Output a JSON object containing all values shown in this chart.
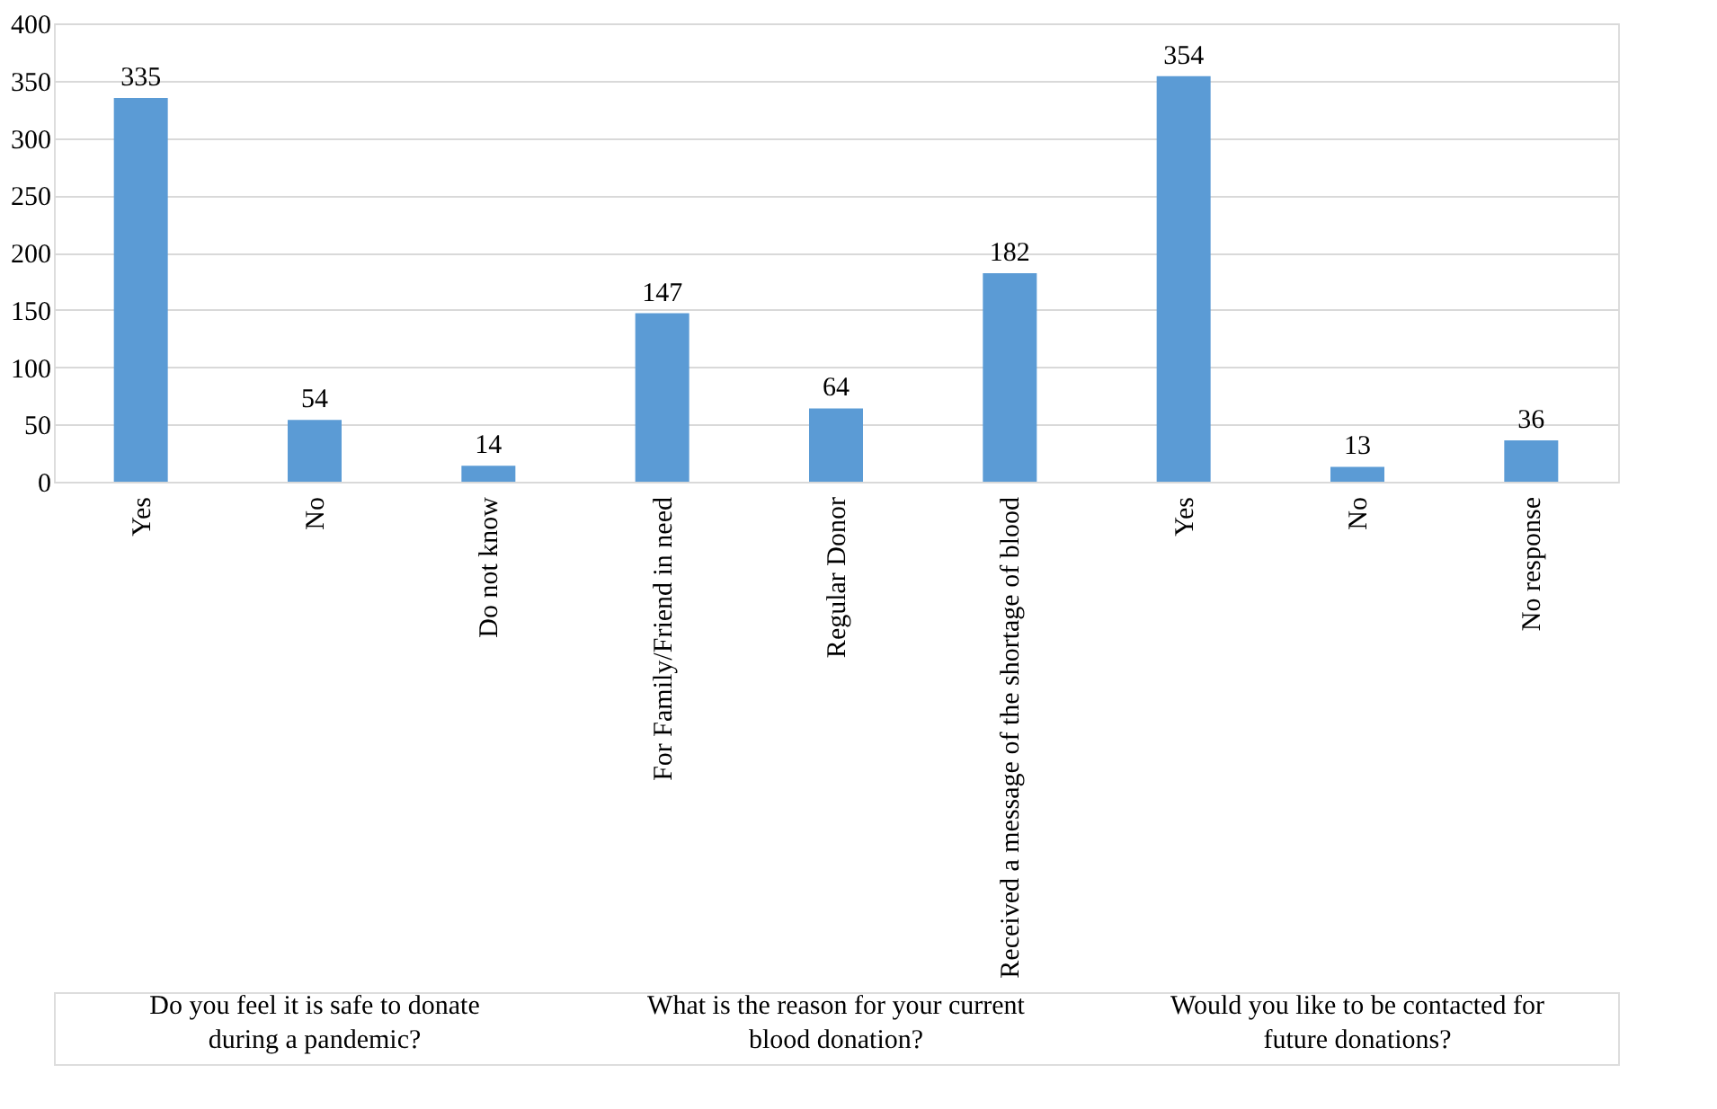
{
  "chart_data": {
    "type": "bar",
    "categories": [
      "Yes",
      "No",
      "Do not know",
      "For Family/Friend in need",
      "Regular Donor",
      "Received a message of the shortage of blood",
      "Yes",
      "No",
      "No response"
    ],
    "values": [
      335,
      54,
      14,
      147,
      64,
      182,
      354,
      13,
      36
    ],
    "color": "#5b9bd5",
    "ylim": [
      0,
      400
    ],
    "yticks": [
      0,
      50,
      100,
      150,
      200,
      250,
      300,
      350,
      400
    ],
    "grid": "y",
    "data_labels": true,
    "annotations": [
      "Do you feel it is safe to donate during a pandemic?",
      "What is the reason for your current blood donation?",
      "Would you like to be contacted for future donations?"
    ]
  }
}
